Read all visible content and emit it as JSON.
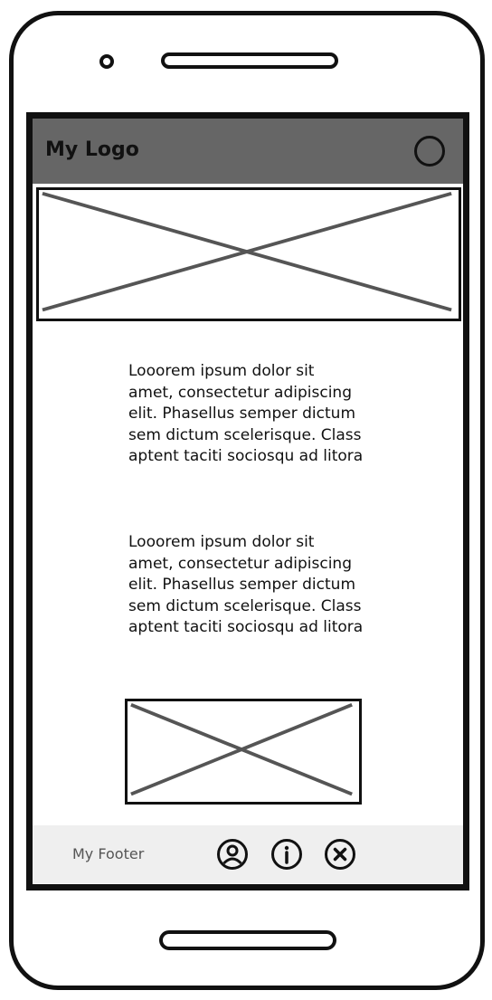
{
  "header": {
    "logo": "My Logo"
  },
  "content": {
    "paragraph1": "Looorem ipsum dolor sit amet, consectetur adipiscing elit. Phasellus semper dictum sem dictum scelerisque. Class aptent taciti sociosqu ad litora",
    "paragraph2": "Looorem ipsum dolor sit amet, consectetur adipiscing elit. Phasellus semper dictum sem dictum scelerisque. Class aptent taciti sociosqu ad litora"
  },
  "footer": {
    "label": "My Footer",
    "icons": [
      "user-icon",
      "info-icon",
      "close-icon"
    ]
  }
}
